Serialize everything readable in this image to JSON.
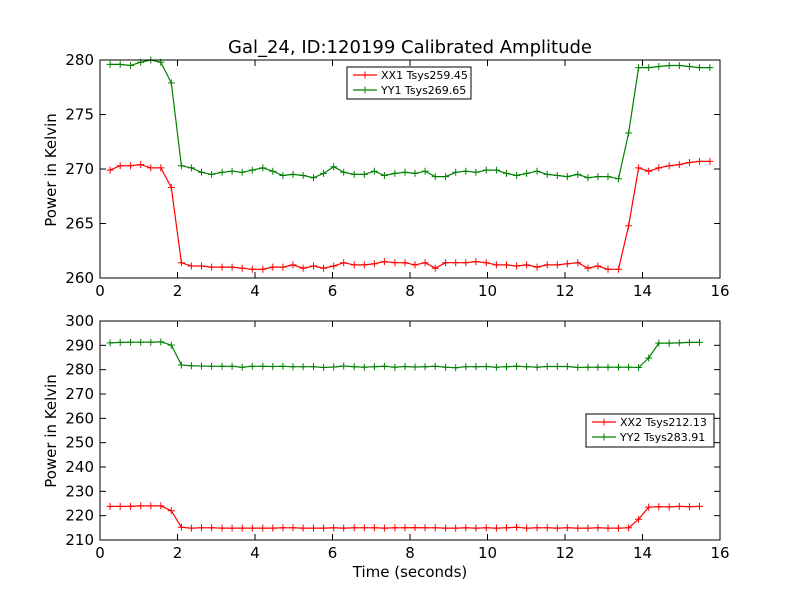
{
  "chart_data": [
    {
      "type": "line",
      "title": "Gal_24, ID:120199 Calibrated Amplitude",
      "xlabel": "",
      "ylabel": "Power in Kelvin",
      "xlim": [
        0,
        16
      ],
      "ylim": [
        260,
        280
      ],
      "xticks": [
        "0",
        "2",
        "4",
        "6",
        "8",
        "10",
        "12",
        "14",
        "16"
      ],
      "yticks": [
        "260",
        "265",
        "270",
        "275",
        "280"
      ],
      "legend_position": "top-center",
      "grid": false,
      "x": [
        0.26,
        0.52,
        0.79,
        1.05,
        1.31,
        1.57,
        1.84,
        2.1,
        2.36,
        2.62,
        2.88,
        3.15,
        3.41,
        3.67,
        3.93,
        4.2,
        4.46,
        4.72,
        4.98,
        5.24,
        5.51,
        5.77,
        6.03,
        6.29,
        6.56,
        6.82,
        7.08,
        7.34,
        7.61,
        7.87,
        8.13,
        8.39,
        8.65,
        8.92,
        9.18,
        9.44,
        9.7,
        9.97,
        10.23,
        10.49,
        10.75,
        11.01,
        11.28,
        11.54,
        11.8,
        12.06,
        12.33,
        12.59,
        12.85,
        13.11,
        13.38,
        13.64,
        13.9,
        14.16,
        14.42,
        14.69,
        14.95,
        15.21,
        15.47,
        15.74
      ],
      "series": [
        {
          "name": "XX1 Tsys259.45",
          "color": "#ff0000",
          "values": [
            269.9,
            270.3,
            270.3,
            270.4,
            270.1,
            270.1,
            268.3,
            261.4,
            261.1,
            261.1,
            261.0,
            261.0,
            261.0,
            260.9,
            260.8,
            260.8,
            261.0,
            261.0,
            261.2,
            260.9,
            261.1,
            260.9,
            261.1,
            261.4,
            261.2,
            261.2,
            261.3,
            261.5,
            261.4,
            261.4,
            261.2,
            261.4,
            260.9,
            261.4,
            261.4,
            261.4,
            261.5,
            261.4,
            261.2,
            261.2,
            261.1,
            261.2,
            261.0,
            261.2,
            261.2,
            261.3,
            261.4,
            260.9,
            261.1,
            260.8,
            260.8,
            264.8,
            270.1,
            269.8,
            270.1,
            270.3,
            270.4,
            270.6,
            270.7,
            270.7
          ]
        },
        {
          "name": "YY1 Tsys269.65",
          "color": "#008000",
          "values": [
            279.6,
            279.6,
            279.5,
            279.8,
            280.0,
            279.8,
            277.9,
            270.3,
            270.1,
            269.7,
            269.5,
            269.7,
            269.8,
            269.7,
            269.9,
            270.1,
            269.8,
            269.4,
            269.5,
            269.4,
            269.2,
            269.6,
            270.2,
            269.7,
            269.5,
            269.5,
            269.8,
            269.4,
            269.6,
            269.7,
            269.6,
            269.8,
            269.3,
            269.3,
            269.7,
            269.8,
            269.7,
            269.9,
            269.9,
            269.6,
            269.4,
            269.6,
            269.8,
            269.5,
            269.4,
            269.3,
            269.5,
            269.2,
            269.3,
            269.3,
            269.1,
            273.3,
            279.3,
            279.3,
            279.4,
            279.5,
            279.5,
            279.4,
            279.3,
            279.3
          ]
        }
      ]
    },
    {
      "type": "line",
      "title": "",
      "xlabel": "Time (seconds)",
      "ylabel": "Power in Kelvin",
      "xlim": [
        0,
        16
      ],
      "ylim": [
        210,
        300
      ],
      "xticks": [
        "0",
        "2",
        "4",
        "6",
        "8",
        "10",
        "12",
        "14",
        "16"
      ],
      "yticks": [
        "210",
        "220",
        "230",
        "240",
        "250",
        "260",
        "270",
        "280",
        "290",
        "300"
      ],
      "legend_position": "center-right",
      "grid": false,
      "x": [
        0.26,
        0.52,
        0.79,
        1.05,
        1.31,
        1.57,
        1.84,
        2.1,
        2.36,
        2.62,
        2.88,
        3.15,
        3.41,
        3.67,
        3.93,
        4.2,
        4.46,
        4.72,
        4.98,
        5.24,
        5.51,
        5.77,
        6.03,
        6.29,
        6.56,
        6.82,
        7.08,
        7.34,
        7.61,
        7.87,
        8.13,
        8.39,
        8.65,
        8.92,
        9.18,
        9.44,
        9.7,
        9.97,
        10.23,
        10.49,
        10.75,
        11.01,
        11.28,
        11.54,
        11.8,
        12.06,
        12.33,
        12.59,
        12.85,
        13.11,
        13.38,
        13.64,
        13.9,
        14.16,
        14.42,
        14.69,
        14.95,
        15.21,
        15.47
      ],
      "series": [
        {
          "name": "XX2 Tsys212.13",
          "color": "#ff0000",
          "values": [
            223.8,
            223.8,
            223.8,
            224.0,
            224.0,
            224.0,
            222.0,
            215.2,
            214.9,
            215.0,
            215.0,
            214.9,
            214.9,
            214.9,
            214.9,
            214.9,
            214.9,
            215.0,
            215.0,
            214.9,
            214.9,
            214.9,
            215.0,
            214.9,
            215.0,
            215.0,
            215.0,
            214.9,
            215.0,
            215.0,
            215.1,
            215.0,
            215.0,
            214.9,
            214.9,
            215.0,
            214.9,
            215.0,
            214.9,
            215.0,
            215.2,
            214.9,
            215.0,
            215.0,
            214.9,
            215.0,
            214.9,
            214.9,
            215.0,
            214.9,
            214.9,
            215.0,
            218.5,
            223.5,
            223.7,
            223.6,
            223.8,
            223.7,
            223.8
          ]
        },
        {
          "name": "YY2 Tsys283.91",
          "color": "#008000",
          "values": [
            291.0,
            291.2,
            291.3,
            291.3,
            291.3,
            291.4,
            290.1,
            281.9,
            281.6,
            281.5,
            281.4,
            281.4,
            281.4,
            281.0,
            281.4,
            281.4,
            281.3,
            281.4,
            281.2,
            281.2,
            281.2,
            280.9,
            281.1,
            281.5,
            281.2,
            281.0,
            281.2,
            281.4,
            281.0,
            281.3,
            281.1,
            281.2,
            281.4,
            281.0,
            280.8,
            281.2,
            281.2,
            281.3,
            281.0,
            281.2,
            281.4,
            281.2,
            281.0,
            281.3,
            281.3,
            281.3,
            280.9,
            281.0,
            281.0,
            281.0,
            281.0,
            281.0,
            280.9,
            284.8,
            290.9,
            290.9,
            291.0,
            291.2,
            291.2
          ]
        }
      ]
    }
  ]
}
